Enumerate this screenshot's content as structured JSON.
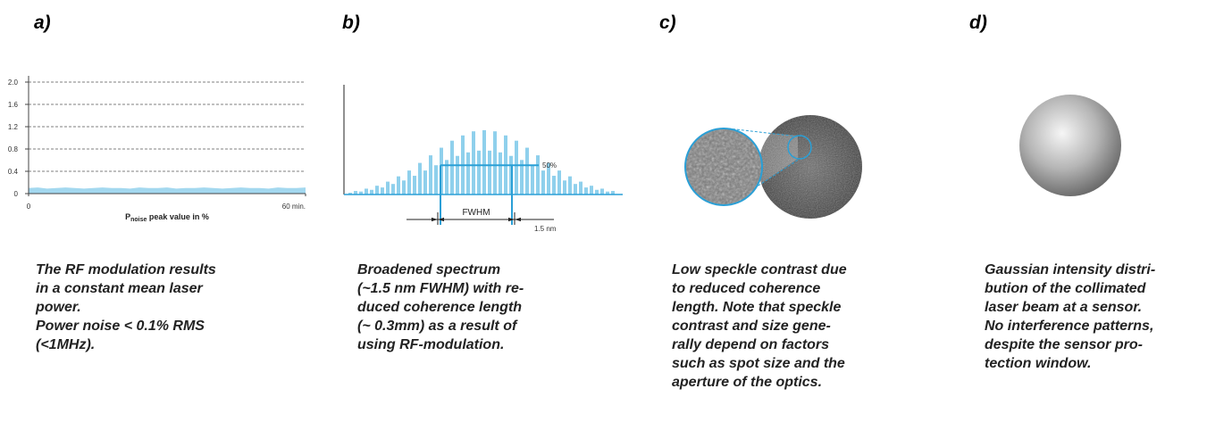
{
  "panels": [
    {
      "label": "a)",
      "chart": {
        "type": "area",
        "color": "#a3d8ef",
        "x": [
          0,
          2,
          4,
          6,
          8,
          10,
          12,
          14,
          16,
          18,
          20,
          22,
          24,
          26,
          28,
          30,
          32,
          34,
          36,
          38,
          40,
          42,
          44,
          46,
          48,
          50,
          52,
          54,
          56,
          58,
          60
        ],
        "values": [
          0.1,
          0.11,
          0.09,
          0.1,
          0.11,
          0.1,
          0.09,
          0.1,
          0.11,
          0.1,
          0.1,
          0.09,
          0.11,
          0.1,
          0.1,
          0.11,
          0.09,
          0.1,
          0.1,
          0.11,
          0.1,
          0.09,
          0.1,
          0.11,
          0.1,
          0.1,
          0.09,
          0.11,
          0.1,
          0.1,
          0.11
        ],
        "xlim": [
          0,
          60
        ],
        "ylim": [
          0,
          2
        ],
        "yticks": [
          0,
          0.4,
          0.8,
          1.2,
          1.6,
          {
            "value": 2,
            "label": "2.0"
          }
        ],
        "xticks": [
          0,
          {
            "value": 60,
            "label": "60 min."
          }
        ],
        "grid": true,
        "xlabel": {
          "main": "P",
          "sub": "noise",
          "rest": " peak value in %"
        }
      },
      "caption": [
        "The RF modulation results",
        "in a constant mean laser",
        "power.",
        "Power noise < 0.1% RMS",
        "(<1MHz)."
      ]
    },
    {
      "label": "b)",
      "chart": {
        "type": "bar",
        "color": "#8fd0ec",
        "ylim": [
          0,
          180
        ],
        "values": [
          3,
          6,
          5,
          10,
          8,
          15,
          12,
          22,
          18,
          31,
          24,
          41,
          32,
          54,
          41,
          67,
          50,
          80,
          59,
          92,
          66,
          101,
          72,
          108,
          75,
          110,
          75,
          108,
          72,
          101,
          66,
          92,
          59,
          80,
          50,
          67,
          41,
          54,
          32,
          41,
          24,
          31,
          18,
          22,
          12,
          15,
          8,
          10,
          5,
          6
        ],
        "half_max": {
          "value": 50,
          "label": "50%"
        },
        "width_label": "FWHM",
        "width_value": "1.5 nm"
      },
      "caption": [
        "Broadened spectrum",
        "(~1.5 nm FWHM) with re-",
        "duced coherence length",
        "(~ 0.3mm) as a result of",
        "using RF-modulation."
      ]
    },
    {
      "label": "c)",
      "caption": [
        "Low speckle contrast due",
        "to reduced coherence",
        "length. Note that speckle",
        "contrast and size gene-",
        "rally depend on factors",
        "such as spot size and the",
        "aperture of the optics."
      ]
    },
    {
      "label": "d)",
      "caption": [
        "Gaussian intensity distri-",
        "bution of the collimated",
        "laser beam at a sensor.",
        "No interference patterns,",
        "despite the sensor pro-",
        "tection window."
      ]
    }
  ]
}
